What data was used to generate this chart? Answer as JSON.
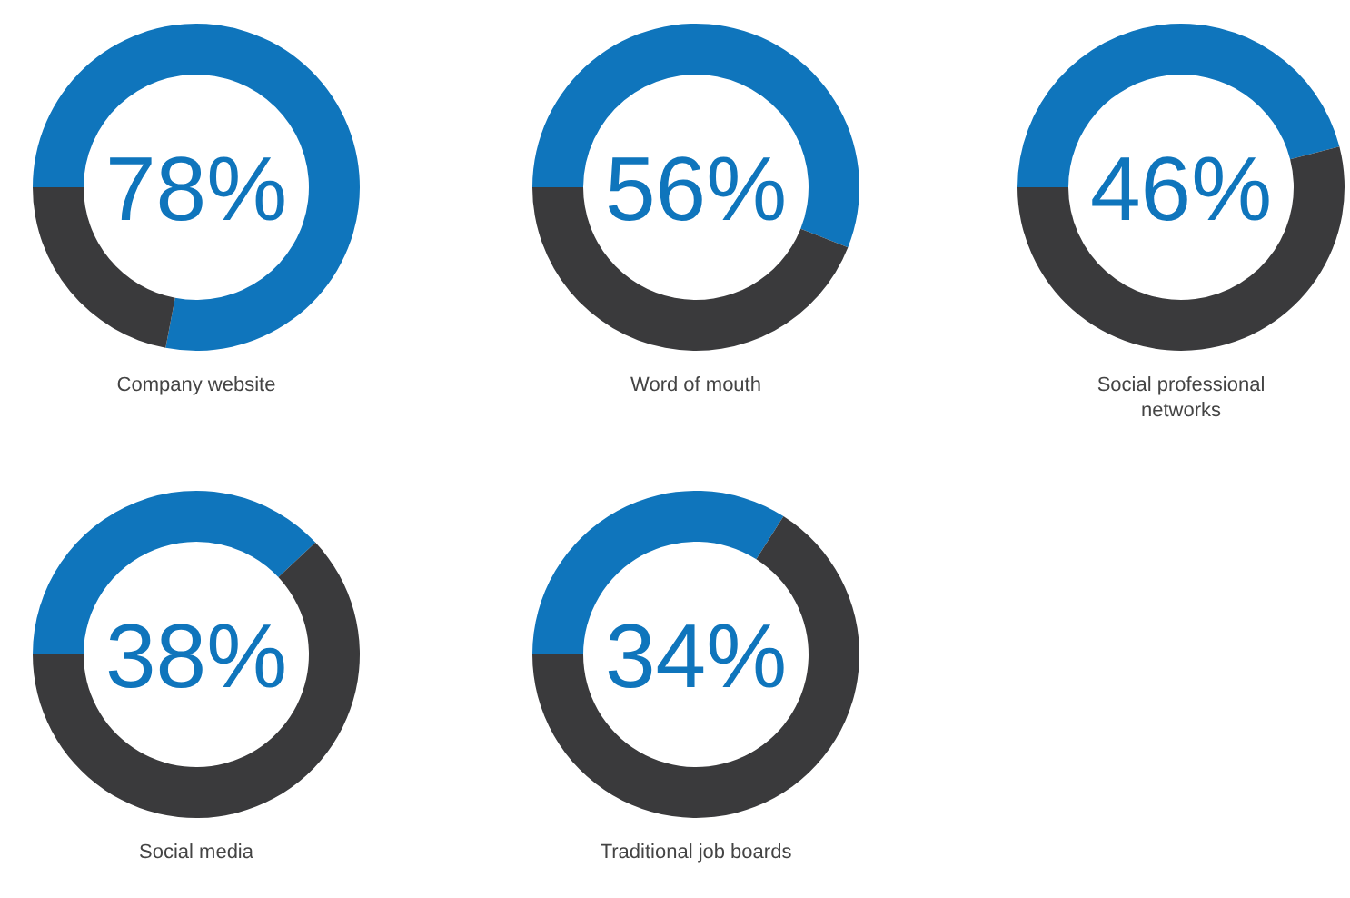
{
  "chart_data": [
    {
      "type": "donut",
      "title": "Company website",
      "categories": [
        null,
        null
      ],
      "values": [
        78,
        22
      ],
      "colors": [
        "#0f75bc",
        "#3a3a3c"
      ],
      "annotations": [
        "78%"
      ]
    },
    {
      "type": "donut",
      "title": "Word of mouth",
      "categories": [
        null,
        null
      ],
      "values": [
        56,
        44
      ],
      "colors": [
        "#0f75bc",
        "#3a3a3c"
      ],
      "annotations": [
        "56%"
      ]
    },
    {
      "type": "donut",
      "title": "Social professional networks",
      "categories": [
        null,
        null
      ],
      "values": [
        46,
        54
      ],
      "colors": [
        "#0f75bc",
        "#3a3a3c"
      ],
      "annotations": [
        "46%"
      ]
    },
    {
      "type": "donut",
      "title": "Social media",
      "categories": [
        null,
        null
      ],
      "values": [
        38,
        62
      ],
      "colors": [
        "#0f75bc",
        "#3a3a3c"
      ],
      "annotations": [
        "38%"
      ]
    },
    {
      "type": "donut",
      "title": "Traditional job boards",
      "categories": [
        null,
        null
      ],
      "values": [
        34,
        66
      ],
      "colors": [
        "#0f75bc",
        "#3a3a3c"
      ],
      "annotations": [
        "34%"
      ]
    }
  ]
}
